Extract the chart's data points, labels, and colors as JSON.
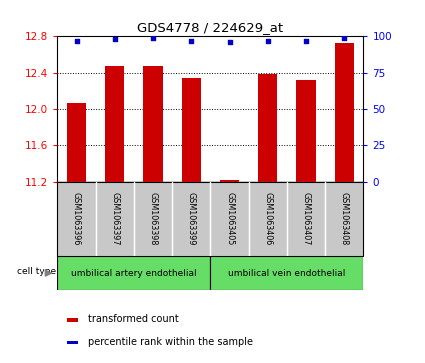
{
  "title": "GDS4778 / 224629_at",
  "samples": [
    "GSM1063396",
    "GSM1063397",
    "GSM1063398",
    "GSM1063399",
    "GSM1063405",
    "GSM1063406",
    "GSM1063407",
    "GSM1063408"
  ],
  "bar_values": [
    12.07,
    12.47,
    12.47,
    12.34,
    11.22,
    12.38,
    12.32,
    12.73
  ],
  "percentile_values": [
    97,
    98,
    99,
    97,
    96,
    97,
    97,
    99
  ],
  "ylim_left": [
    11.2,
    12.8
  ],
  "ylim_right": [
    0,
    100
  ],
  "yticks_left": [
    11.2,
    11.6,
    12.0,
    12.4,
    12.8
  ],
  "yticks_right": [
    0,
    25,
    50,
    75,
    100
  ],
  "bar_color": "#cc0000",
  "dot_color": "#0000cc",
  "group1_label": "umbilical artery endothelial",
  "group2_label": "umbilical vein endothelial",
  "group1_samples": [
    0,
    1,
    2,
    3
  ],
  "group2_samples": [
    4,
    5,
    6,
    7
  ],
  "legend_bar_label": "transformed count",
  "legend_dot_label": "percentile rank within the sample",
  "cell_type_label": "cell type",
  "background_color": "#ffffff",
  "panel_bg": "#c8c8c8",
  "group_bg": "#66dd66"
}
